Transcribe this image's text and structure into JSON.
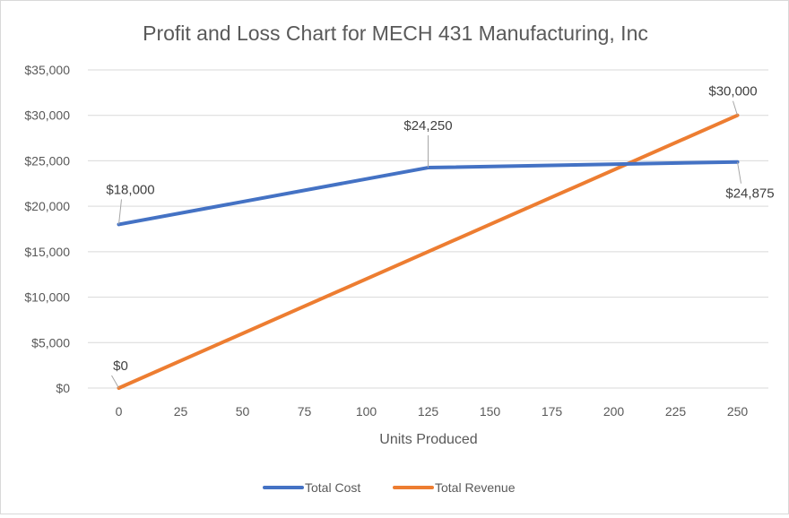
{
  "chart_data": {
    "type": "line",
    "title": "Profit and Loss Chart for MECH 431 Manufacturing, Inc",
    "xlabel": "Units Produced",
    "ylabel": "",
    "xlim": [
      0,
      250
    ],
    "ylim": [
      0,
      35000
    ],
    "x_ticks": [
      0,
      25,
      50,
      75,
      100,
      125,
      150,
      175,
      200,
      225,
      250
    ],
    "x_tick_labels": [
      "0",
      "25",
      "50",
      "75",
      "100",
      "125",
      "150",
      "175",
      "200",
      "225",
      "250"
    ],
    "y_ticks": [
      0,
      5000,
      10000,
      15000,
      20000,
      25000,
      30000,
      35000
    ],
    "y_tick_labels": [
      "$0",
      "$5,000",
      "$10,000",
      "$15,000",
      "$20,000",
      "$25,000",
      "$30,000",
      "$35,000"
    ],
    "grid": true,
    "legend_position": "bottom",
    "series": [
      {
        "name": "Total Cost",
        "color": "#4472c4",
        "points": [
          {
            "x": 0,
            "y": 18000,
            "label": "$18,000"
          },
          {
            "x": 125,
            "y": 24250,
            "label": "$24,250"
          },
          {
            "x": 250,
            "y": 24875,
            "label": "$24,875"
          }
        ]
      },
      {
        "name": "Total Revenue",
        "color": "#ed7d31",
        "points": [
          {
            "x": 0,
            "y": 0,
            "label": "$0"
          },
          {
            "x": 250,
            "y": 30000,
            "label": "$30,000"
          }
        ]
      }
    ]
  }
}
